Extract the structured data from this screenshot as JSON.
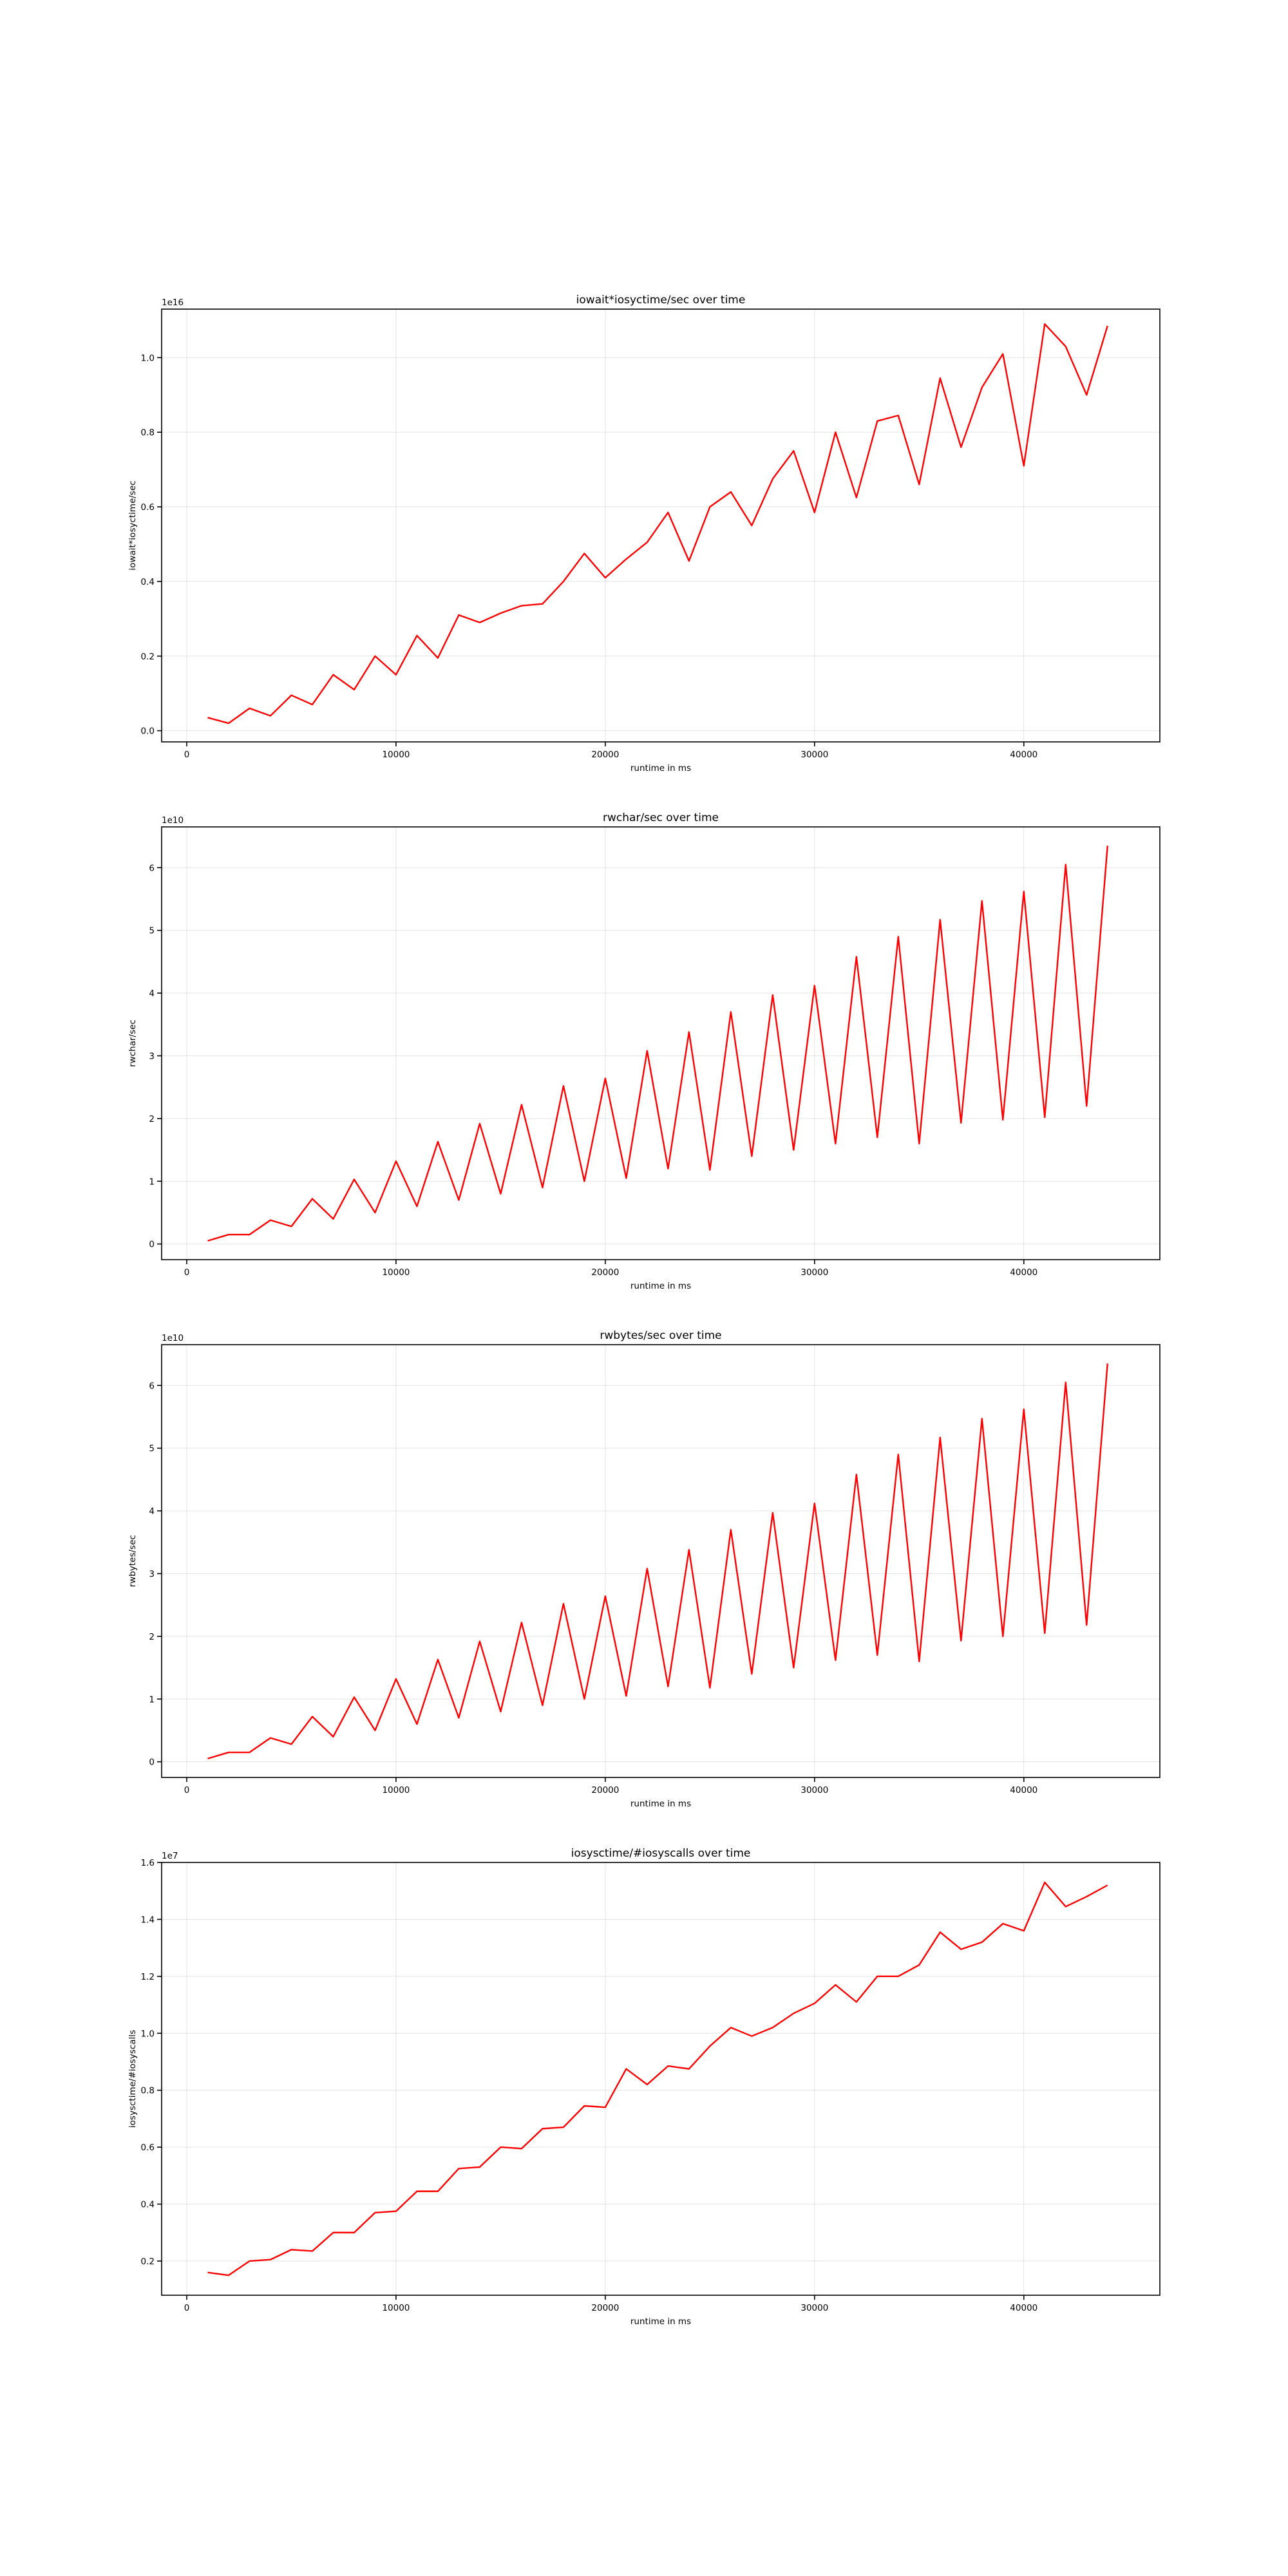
{
  "chart_data": [
    {
      "type": "line",
      "title": "iowait*iosyctime/sec  over time",
      "xlabel": "runtime in ms",
      "ylabel": "iowait*iosyctime/sec",
      "y_offset_label": "1e16",
      "xlim": [
        -1200,
        46500
      ],
      "ylim": [
        -0.03,
        1.13
      ],
      "xticks": [
        0,
        10000,
        20000,
        30000,
        40000
      ],
      "yticks": [
        0.0,
        0.2,
        0.4,
        0.6,
        0.8,
        1.0
      ],
      "ytick_labels": [
        "0.0",
        "0.2",
        "0.4",
        "0.6",
        "0.8",
        "1.0"
      ],
      "grid": true,
      "color": "#ff0000",
      "x": [
        1000,
        2000,
        3000,
        4000,
        5000,
        6000,
        7000,
        8000,
        9000,
        10000,
        11000,
        12000,
        13000,
        14000,
        15000,
        16000,
        17000,
        18000,
        19000,
        20000,
        21000,
        22000,
        23000,
        24000,
        25000,
        26000,
        27000,
        28000,
        29000,
        30000,
        31000,
        32000,
        33000,
        34000,
        35000,
        36000,
        37000,
        38000,
        39000,
        40000,
        41000,
        42000,
        43000,
        44000
      ],
      "y": [
        0.035,
        0.02,
        0.06,
        0.04,
        0.095,
        0.07,
        0.15,
        0.11,
        0.2,
        0.15,
        0.255,
        0.195,
        0.31,
        0.29,
        0.315,
        0.335,
        0.34,
        0.4,
        0.475,
        0.41,
        0.46,
        0.505,
        0.585,
        0.455,
        0.6,
        0.64,
        0.55,
        0.675,
        0.75,
        0.585,
        0.8,
        0.625,
        0.83,
        0.845,
        0.66,
        0.945,
        0.76,
        0.92,
        1.01,
        0.71,
        1.09,
        1.03,
        0.9,
        1.085
      ]
    },
    {
      "type": "line",
      "title": "rwchar/sec  over time",
      "xlabel": "runtime in ms",
      "ylabel": "rwchar/sec",
      "y_offset_label": "1e10",
      "xlim": [
        -1200,
        46500
      ],
      "ylim": [
        -0.25,
        6.65
      ],
      "xticks": [
        0,
        10000,
        20000,
        30000,
        40000
      ],
      "yticks": [
        0,
        1,
        2,
        3,
        4,
        5,
        6
      ],
      "ytick_labels": [
        "0",
        "1",
        "2",
        "3",
        "4",
        "5",
        "6"
      ],
      "grid": true,
      "color": "#ff0000",
      "x": [
        1000,
        2000,
        3000,
        4000,
        5000,
        6000,
        7000,
        8000,
        9000,
        10000,
        11000,
        12000,
        13000,
        14000,
        15000,
        16000,
        17000,
        18000,
        19000,
        20000,
        21000,
        22000,
        23000,
        24000,
        25000,
        26000,
        27000,
        28000,
        29000,
        30000,
        31000,
        32000,
        33000,
        34000,
        35000,
        36000,
        37000,
        38000,
        39000,
        40000,
        41000,
        42000,
        43000,
        44000
      ],
      "y": [
        0.05,
        0.15,
        0.15,
        0.38,
        0.28,
        0.72,
        0.4,
        1.03,
        0.5,
        1.32,
        0.6,
        1.63,
        0.7,
        1.92,
        0.8,
        2.22,
        0.9,
        2.52,
        1.0,
        2.64,
        1.05,
        3.08,
        1.2,
        3.38,
        1.18,
        3.7,
        1.4,
        3.97,
        1.5,
        4.12,
        1.6,
        4.58,
        1.7,
        4.9,
        1.6,
        5.17,
        1.93,
        5.47,
        1.98,
        5.62,
        2.02,
        6.05,
        2.2,
        6.35
      ]
    },
    {
      "type": "line",
      "title": "rwbytes/sec  over time",
      "xlabel": "runtime in ms",
      "ylabel": "rwbytes/sec",
      "y_offset_label": "1e10",
      "xlim": [
        -1200,
        46500
      ],
      "ylim": [
        -0.25,
        6.65
      ],
      "xticks": [
        0,
        10000,
        20000,
        30000,
        40000
      ],
      "yticks": [
        0,
        1,
        2,
        3,
        4,
        5,
        6
      ],
      "ytick_labels": [
        "0",
        "1",
        "2",
        "3",
        "4",
        "5",
        "6"
      ],
      "grid": true,
      "color": "#ff0000",
      "x": [
        1000,
        2000,
        3000,
        4000,
        5000,
        6000,
        7000,
        8000,
        9000,
        10000,
        11000,
        12000,
        13000,
        14000,
        15000,
        16000,
        17000,
        18000,
        19000,
        20000,
        21000,
        22000,
        23000,
        24000,
        25000,
        26000,
        27000,
        28000,
        29000,
        30000,
        31000,
        32000,
        33000,
        34000,
        35000,
        36000,
        37000,
        38000,
        39000,
        40000,
        41000,
        42000,
        43000,
        44000
      ],
      "y": [
        0.05,
        0.15,
        0.15,
        0.38,
        0.28,
        0.72,
        0.4,
        1.03,
        0.5,
        1.32,
        0.6,
        1.63,
        0.7,
        1.92,
        0.8,
        2.22,
        0.9,
        2.52,
        1.0,
        2.64,
        1.05,
        3.08,
        1.2,
        3.38,
        1.18,
        3.7,
        1.4,
        3.97,
        1.5,
        4.12,
        1.62,
        4.58,
        1.7,
        4.9,
        1.6,
        5.17,
        1.93,
        5.47,
        2.0,
        5.62,
        2.05,
        6.05,
        2.18,
        6.35
      ]
    },
    {
      "type": "line",
      "title": "iosysctime/#iosyscalls  over time",
      "xlabel": "runtime in ms",
      "ylabel": "iosysctime/#iosyscalls",
      "y_offset_label": "1e7",
      "xlim": [
        -1200,
        46500
      ],
      "ylim": [
        0.08,
        1.6
      ],
      "xticks": [
        0,
        10000,
        20000,
        30000,
        40000
      ],
      "yticks": [
        0.2,
        0.4,
        0.6,
        0.8,
        1.0,
        1.2,
        1.4,
        1.6
      ],
      "ytick_labels": [
        "0.2",
        "0.4",
        "0.6",
        "0.8",
        "1.0",
        "1.2",
        "1.4",
        "1.6"
      ],
      "grid": true,
      "color": "#ff0000",
      "x": [
        1000,
        2000,
        3000,
        4000,
        5000,
        6000,
        7000,
        8000,
        9000,
        10000,
        11000,
        12000,
        13000,
        14000,
        15000,
        16000,
        17000,
        18000,
        19000,
        20000,
        21000,
        22000,
        23000,
        24000,
        25000,
        26000,
        27000,
        28000,
        29000,
        30000,
        31000,
        32000,
        33000,
        34000,
        35000,
        36000,
        37000,
        38000,
        39000,
        40000,
        41000,
        42000,
        43000,
        44000
      ],
      "y": [
        0.16,
        0.15,
        0.2,
        0.205,
        0.24,
        0.235,
        0.3,
        0.3,
        0.37,
        0.375,
        0.445,
        0.445,
        0.525,
        0.53,
        0.6,
        0.595,
        0.665,
        0.67,
        0.745,
        0.74,
        0.875,
        0.82,
        0.885,
        0.875,
        0.955,
        1.02,
        0.99,
        1.02,
        1.07,
        1.105,
        1.17,
        1.11,
        1.2,
        1.2,
        1.24,
        1.355,
        1.295,
        1.32,
        1.385,
        1.36,
        1.53,
        1.445,
        1.48,
        1.52
      ]
    }
  ]
}
